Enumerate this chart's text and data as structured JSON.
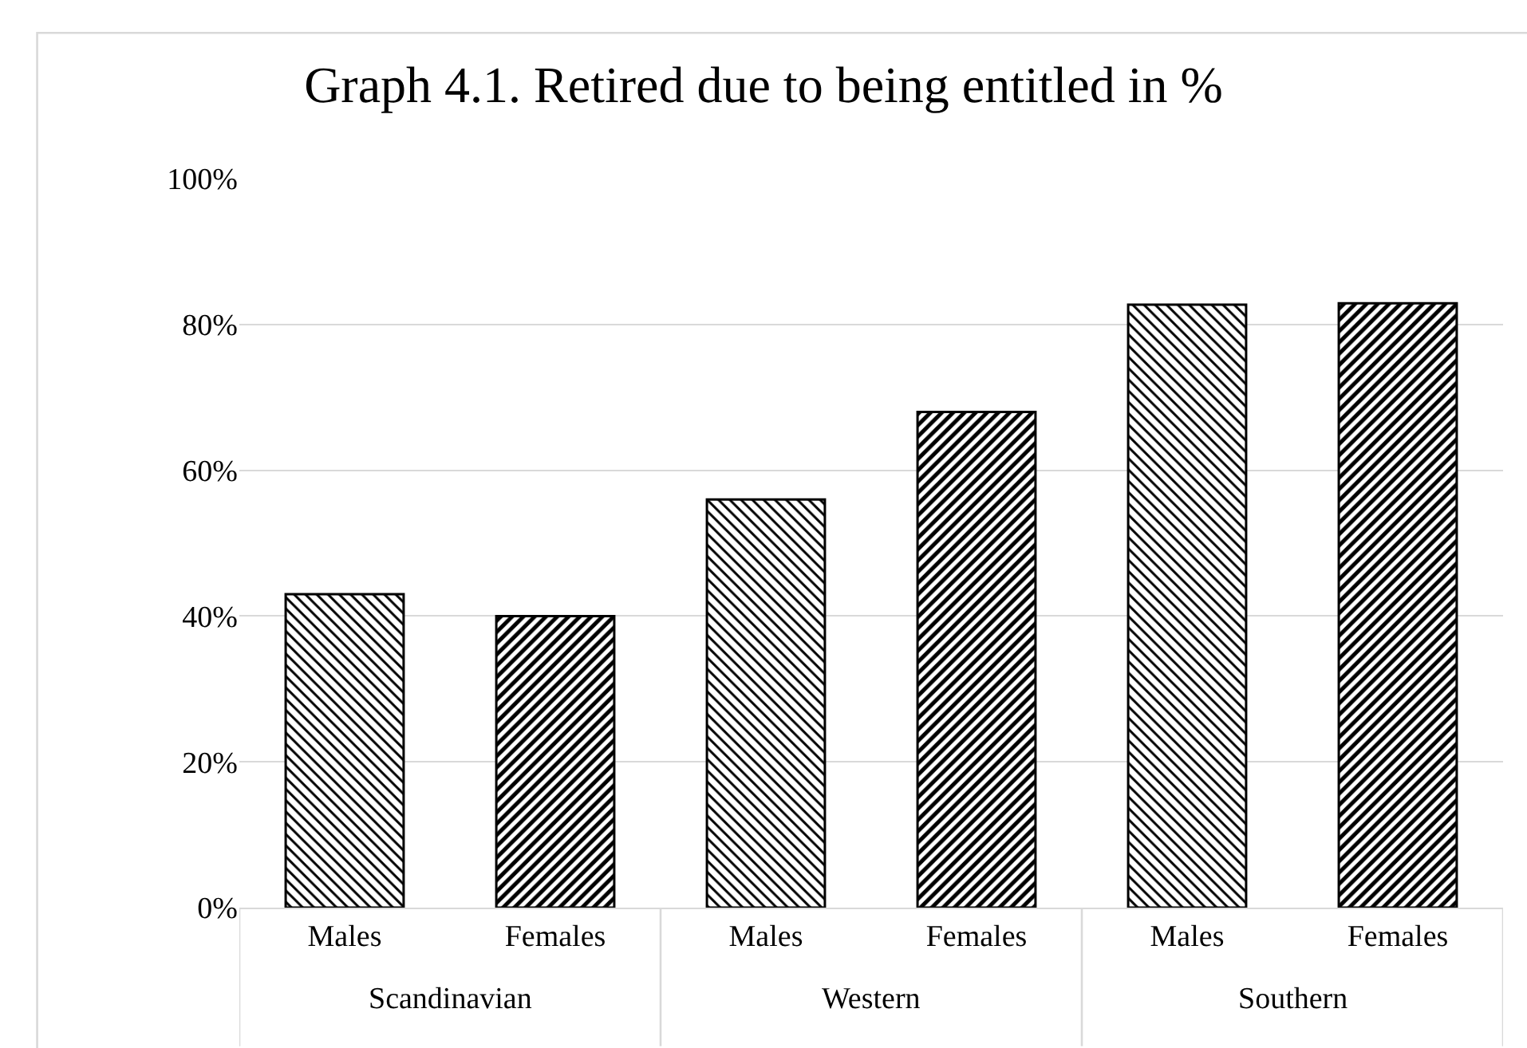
{
  "chart_data": {
    "type": "bar",
    "title": "Graph 4.1. Retired due to being entitled in %",
    "categories": [
      "Males",
      "Females",
      "Males",
      "Females",
      "Males",
      "Females"
    ],
    "values": [
      43,
      40,
      56,
      68,
      82.7,
      82.9
    ],
    "colors": [
      "#000000",
      "#000000",
      "#000000",
      "#000000",
      "#000000",
      "#000000"
    ],
    "ylim": [
      0,
      100
    ],
    "yticks": [
      {
        "value": 0,
        "label": "0%"
      },
      {
        "value": 20,
        "label": "20%"
      },
      {
        "value": 40,
        "label": "40%"
      },
      {
        "value": 60,
        "label": "60%"
      },
      {
        "value": 80,
        "label": "80%"
      },
      {
        "value": 100,
        "label": "100%"
      }
    ],
    "grid": "y",
    "annotations": [
      "Scandinavian",
      "Western",
      "Southern"
    ]
  }
}
